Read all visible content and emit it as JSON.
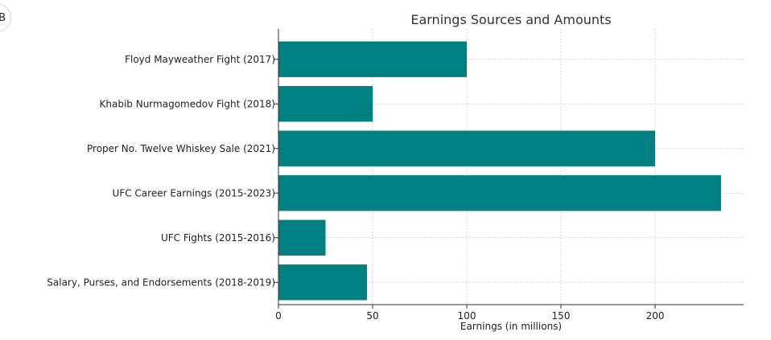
{
  "corner_avatar_text": "B",
  "chart_data": {
    "type": "bar",
    "orientation": "horizontal",
    "title": "Earnings Sources and Amounts",
    "xlabel": "Earnings (in millions)",
    "ylabel": "",
    "categories": [
      "Floyd Mayweather Fight (2017)",
      "Khabib Nurmagomedov Fight (2018)",
      "Proper No. Twelve Whiskey Sale (2021)",
      "UFC Career Earnings (2015-2023)",
      "UFC Fights (2015-2016)",
      "Salary, Purses, and Endorsements (2018-2019)"
    ],
    "values": [
      100,
      50,
      200,
      235,
      25,
      47
    ],
    "xlim": [
      0,
      247
    ],
    "xticks": [
      0,
      50,
      100,
      150,
      200
    ],
    "grid": true,
    "bar_color": "#008080",
    "grid_color": "#cccccc",
    "axis_color": "#333333"
  }
}
